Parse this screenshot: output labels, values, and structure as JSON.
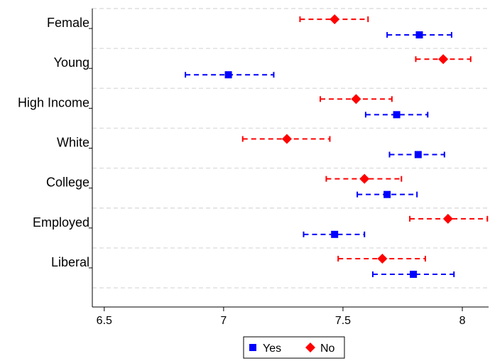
{
  "chart_data": {
    "type": "scatter",
    "subtype": "coefficient-plot-with-confidence-intervals",
    "categories": [
      "Female",
      "Young",
      "High Income",
      "White",
      "College",
      "Employed",
      "Liberal"
    ],
    "xlim": [
      6.45,
      8.11
    ],
    "xticks": [
      6.5,
      7,
      7.5,
      8
    ],
    "xtick_labels": [
      "6.5",
      "7",
      "7.5",
      "8"
    ],
    "grid": "horizontal dashed separators",
    "legend": {
      "placement": "bottom-center",
      "entries": [
        "Yes",
        "No"
      ]
    },
    "series": [
      {
        "name": "Yes",
        "color": "#0000ff",
        "marker": "square",
        "points": [
          {
            "category": "Female",
            "estimate": 7.82,
            "lower": 7.685,
            "upper": 7.955
          },
          {
            "category": "Young",
            "estimate": 7.02,
            "lower": 6.84,
            "upper": 7.21
          },
          {
            "category": "High Income",
            "estimate": 7.725,
            "lower": 7.595,
            "upper": 7.855
          },
          {
            "category": "White",
            "estimate": 7.815,
            "lower": 7.695,
            "upper": 7.925
          },
          {
            "category": "College",
            "estimate": 7.685,
            "lower": 7.56,
            "upper": 7.81
          },
          {
            "category": "Employed",
            "estimate": 7.465,
            "lower": 7.335,
            "upper": 7.59
          },
          {
            "category": "Liberal",
            "estimate": 7.795,
            "lower": 7.625,
            "upper": 7.965
          }
        ]
      },
      {
        "name": "No",
        "color": "#ff0000",
        "marker": "diamond",
        "points": [
          {
            "category": "Female",
            "estimate": 7.465,
            "lower": 7.32,
            "upper": 7.605
          },
          {
            "category": "Young",
            "estimate": 7.92,
            "lower": 7.805,
            "upper": 8.035
          },
          {
            "category": "High Income",
            "estimate": 7.555,
            "lower": 7.405,
            "upper": 7.705
          },
          {
            "category": "White",
            "estimate": 7.265,
            "lower": 7.08,
            "upper": 7.445
          },
          {
            "category": "College",
            "estimate": 7.59,
            "lower": 7.43,
            "upper": 7.745
          },
          {
            "category": "Employed",
            "estimate": 7.94,
            "lower": 7.78,
            "upper": 8.105
          },
          {
            "category": "Liberal",
            "estimate": 7.665,
            "lower": 7.48,
            "upper": 7.845
          }
        ]
      }
    ]
  }
}
